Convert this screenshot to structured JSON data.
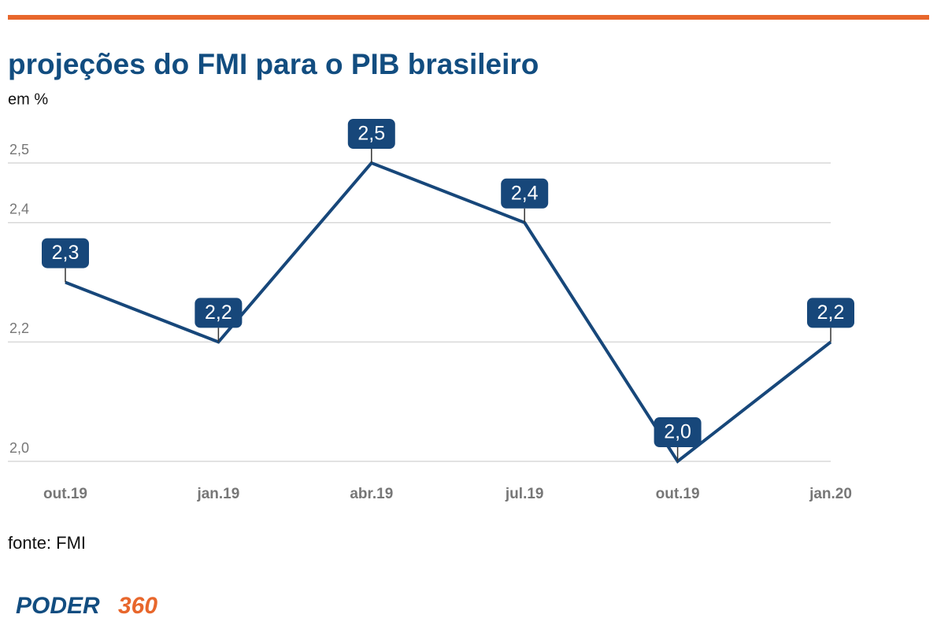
{
  "chart_data": {
    "type": "line",
    "title": "projeções do FMI para o PIB brasileiro",
    "subtitle": "em %",
    "categories": [
      "out.19",
      "jan.19",
      "abr.19",
      "jul.19",
      "out.19",
      "jan.20"
    ],
    "series": [
      {
        "color": "#17477a",
        "values": [
          2.3,
          2.2,
          2.5,
          2.4,
          2.0,
          2.2
        ],
        "value_labels": [
          "2,3",
          "2,2",
          "2,5",
          "2,4",
          "2,0",
          "2,2"
        ]
      }
    ],
    "ylim": [
      2.0,
      2.5
    ],
    "yticks": [
      {
        "value": 2.0,
        "label": "2,0"
      },
      {
        "value": 2.2,
        "label": "2,2"
      },
      {
        "value": 2.4,
        "label": "2,4"
      },
      {
        "value": 2.5,
        "label": "2,5"
      }
    ],
    "grid": true
  },
  "source": "fonte: FMI",
  "logo": {
    "brand": "PODER",
    "number": "360"
  }
}
